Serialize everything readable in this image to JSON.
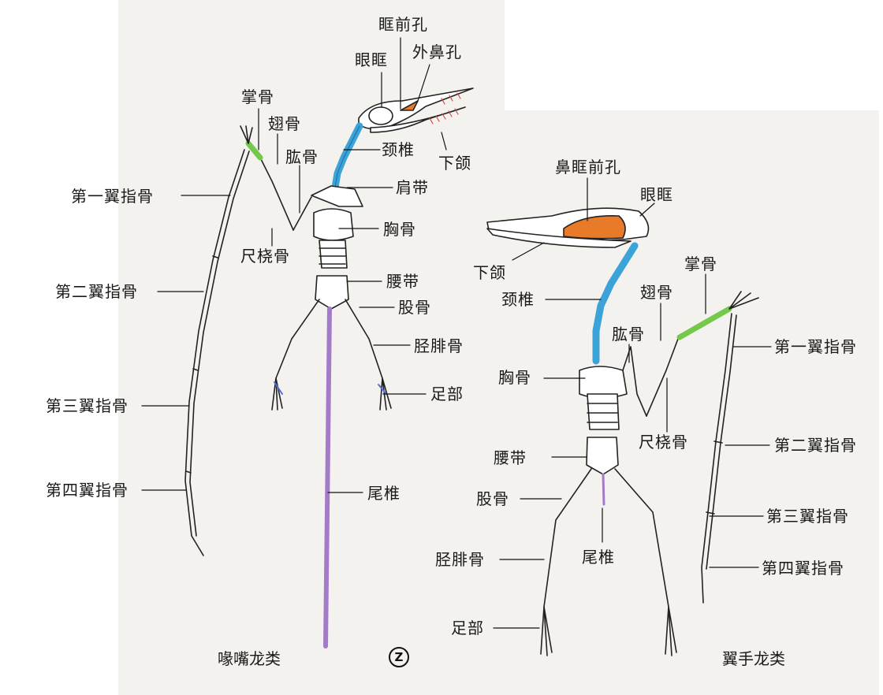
{
  "colors": {
    "skull_window": "#e87a2a",
    "neck": "#3ba3d8",
    "metacarpal": "#74c84a",
    "tail": "#a47bc9",
    "foot_tint": "#5a6dd8",
    "bone_outline": "#222222"
  },
  "left_figure": {
    "caption": "喙嘴龙类",
    "badge": "Z",
    "labels": {
      "antorbital_fenestra": "眶前孔",
      "orbit": "眼眶",
      "external_naris": "外鼻孔",
      "metacarpal": "掌骨",
      "pteroid": "翅骨",
      "cervical_vertebrae": "颈椎",
      "lower_jaw": "下颌",
      "humerus": "肱骨",
      "first_wing_phalanx": "第一翼指骨",
      "shoulder_girdle": "肩带",
      "sternum": "胸骨",
      "radius_ulna": "尺桡骨",
      "pelvic_girdle": "腰带",
      "second_wing_phalanx": "第二翼指骨",
      "femur": "股骨",
      "tibiofibula": "胫腓骨",
      "third_wing_phalanx": "第三翼指骨",
      "foot": "足部",
      "fourth_wing_phalanx": "第四翼指骨",
      "caudal_vertebrae": "尾椎"
    }
  },
  "right_figure": {
    "caption": "翼手龙类",
    "labels": {
      "nasoantorbital_fenestra": "鼻眶前孔",
      "orbit": "眼眶",
      "lower_jaw": "下颌",
      "metacarpal": "掌骨",
      "cervical_vertebrae": "颈椎",
      "pteroid": "翅骨",
      "humerus": "肱骨",
      "first_wing_phalanx": "第一翼指骨",
      "sternum": "胸骨",
      "radius_ulna": "尺桡骨",
      "second_wing_phalanx": "第二翼指骨",
      "pelvic_girdle": "腰带",
      "femur": "股骨",
      "third_wing_phalanx": "第三翼指骨",
      "tibiofibula": "胫腓骨",
      "caudal_vertebrae": "尾椎",
      "fourth_wing_phalanx": "第四翼指骨",
      "foot": "足部"
    }
  }
}
